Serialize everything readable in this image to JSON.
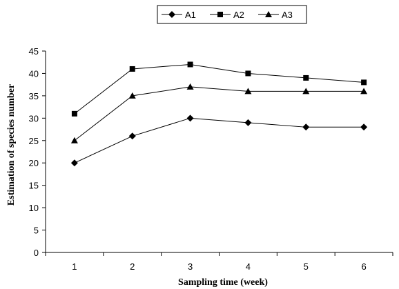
{
  "chart_data": {
    "type": "line",
    "xlabel": "Sampling time (week)",
    "ylabel": "Estimation of species number",
    "categories": [
      "1",
      "2",
      "3",
      "4",
      "5",
      "6"
    ],
    "y_ticks": [
      "0",
      "5",
      "10",
      "15",
      "20",
      "25",
      "30",
      "35",
      "40",
      "45"
    ],
    "ylim": [
      0,
      45
    ],
    "legend_position": "top-center",
    "grid": false,
    "series": [
      {
        "name": "A1",
        "marker": "diamond",
        "color": "#000000",
        "values": [
          20,
          26,
          30,
          29,
          28,
          28
        ]
      },
      {
        "name": "A2",
        "marker": "square",
        "color": "#000000",
        "values": [
          31,
          41,
          42,
          40,
          39,
          38
        ]
      },
      {
        "name": "A3",
        "marker": "triangle",
        "color": "#000000",
        "values": [
          25,
          35,
          37,
          36,
          36,
          36
        ]
      }
    ]
  }
}
